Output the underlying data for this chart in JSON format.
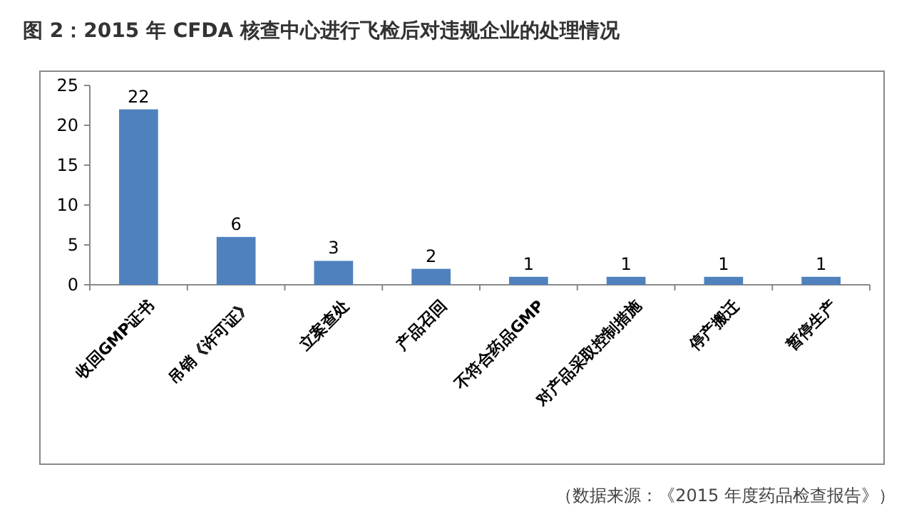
{
  "chart_data": {
    "type": "bar",
    "title": "图 2：2015 年 CFDA 核查中心进行飞检后对违规企业的处理情况",
    "categories": [
      "收回GMP证书",
      "吊销《许可证》",
      "立案查处",
      "产品召回",
      "不符合药品GMP",
      "对产品采取控制措施",
      "停产搬迁",
      "暂停生产"
    ],
    "values": [
      22,
      6,
      3,
      2,
      1,
      1,
      1,
      1
    ],
    "color": "#4f81bd",
    "ylim": [
      0,
      25
    ],
    "yticks": [
      0,
      5,
      10,
      15,
      20,
      25
    ],
    "data_labels": true,
    "annotations": [
      "（数据来源：《2015 年度药品检查报告》）"
    ]
  }
}
